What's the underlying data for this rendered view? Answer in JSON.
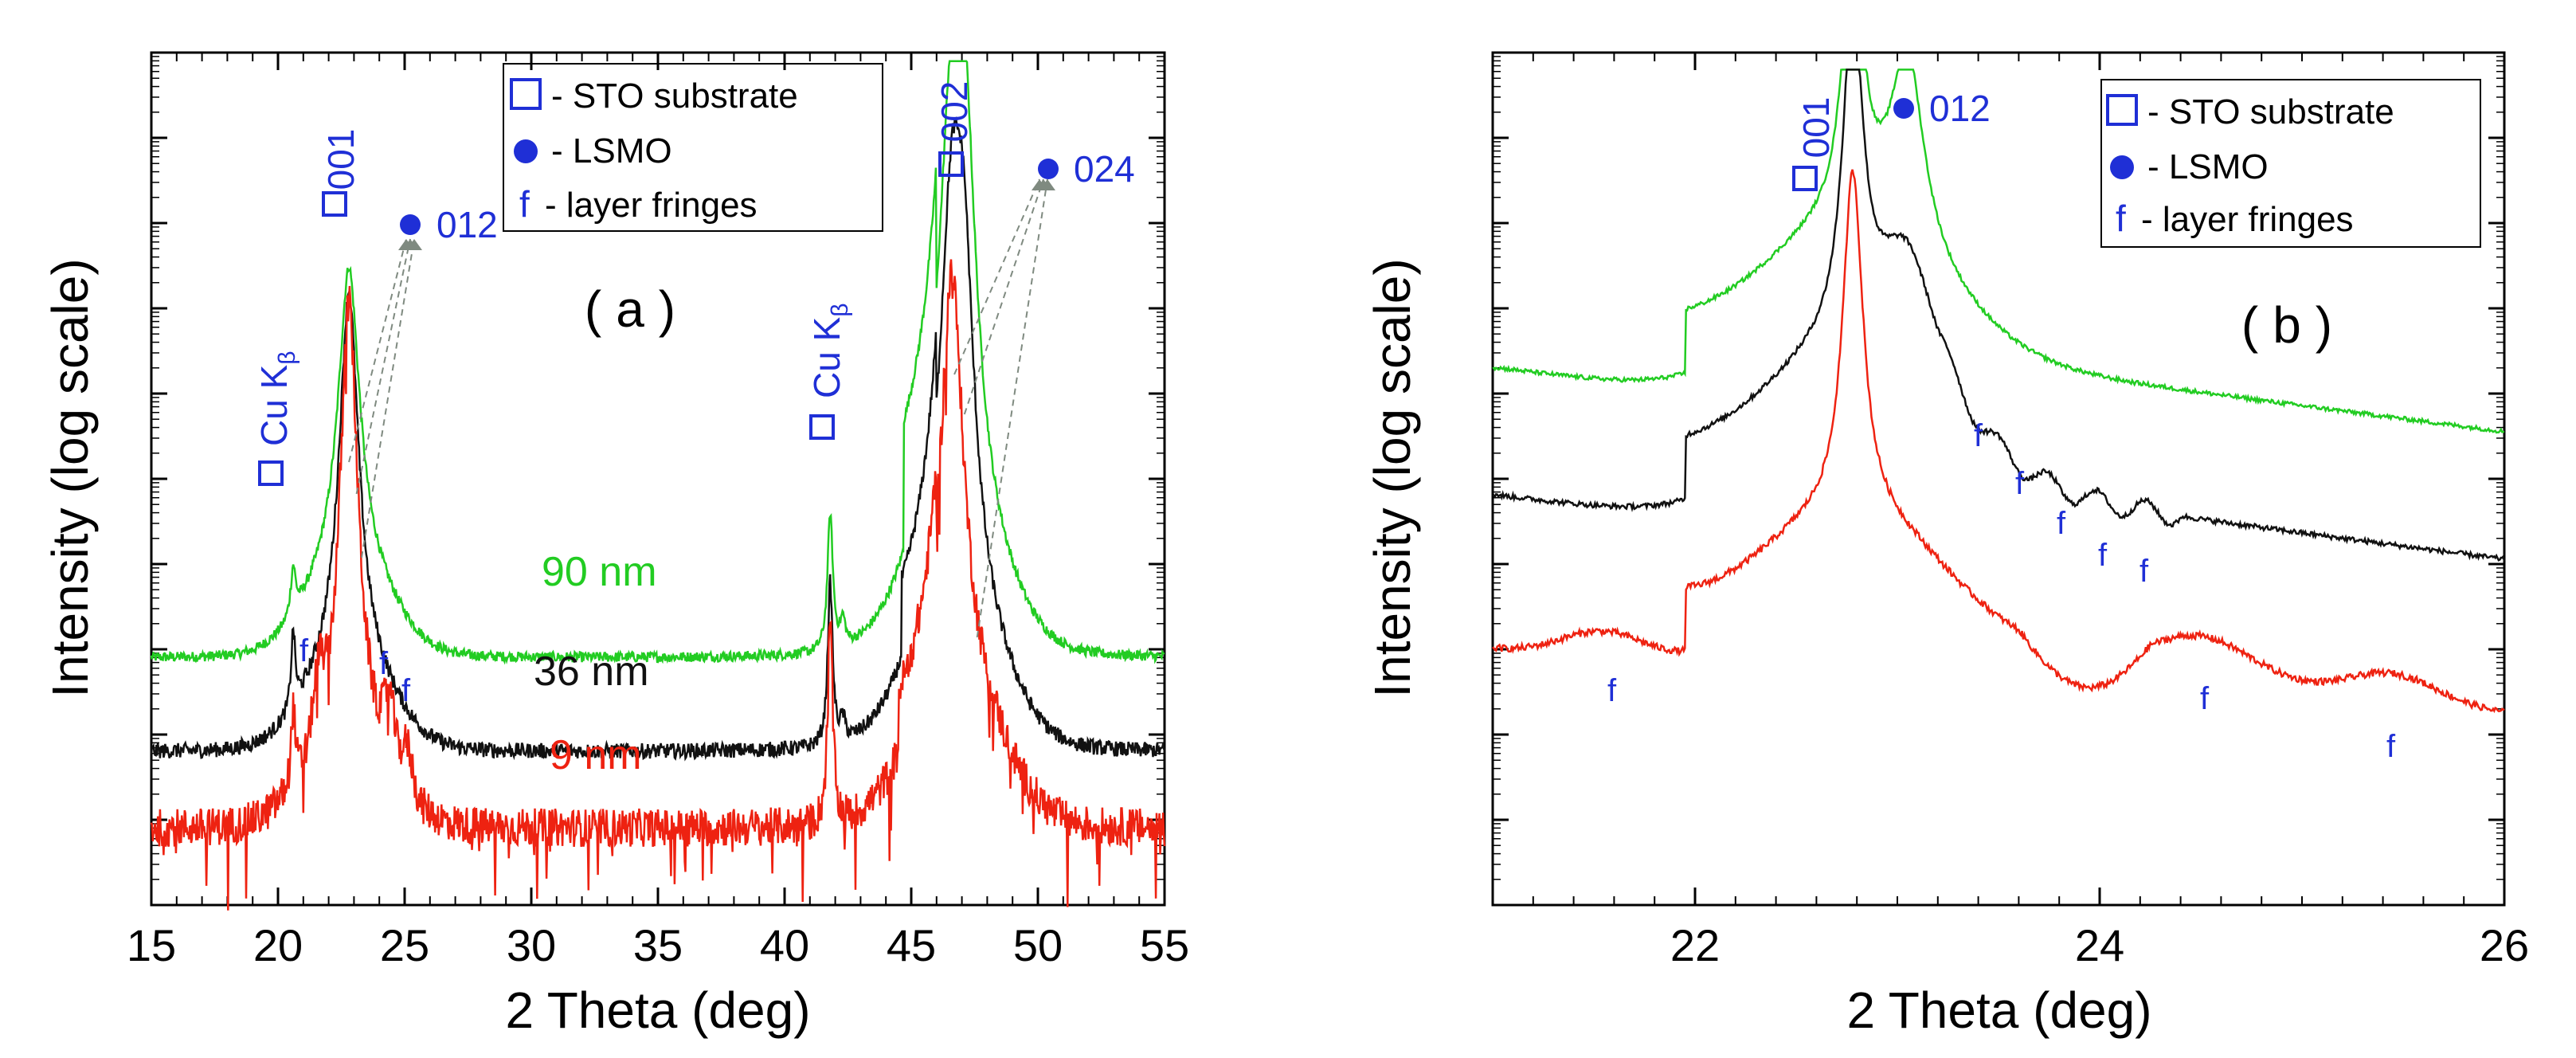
{
  "chart_data": [
    {
      "type": "line",
      "panel": "(a)",
      "xlabel": "2 Theta (deg)",
      "ylabel": "Intensity (log scale)",
      "xlim": [
        15,
        55
      ],
      "xticks": [
        15,
        20,
        25,
        30,
        35,
        40,
        45,
        50,
        55
      ],
      "ylim": [
        0,
        10
      ],
      "yscale": "log (relative)",
      "legend": {
        "position": "top-right",
        "entries": [
          {
            "symbol": "open-square",
            "text": "- STO substrate"
          },
          {
            "symbol": "filled-circle",
            "text": "- LSMO"
          },
          {
            "symbol": "f",
            "text": "layer fringes"
          }
        ]
      },
      "series": [
        {
          "name": "90 nm",
          "label": "90 nm",
          "color": "#22cc22",
          "offset": 2.9,
          "peaks": [
            [
              20.6,
              0.55,
              0.12
            ],
            [
              22.8,
              3.5,
              0.55
            ],
            [
              41.8,
              1.6,
              0.13
            ],
            [
              42.3,
              0.3,
              0.12
            ],
            [
              46.6,
              4.5,
              0.75
            ],
            [
              47.15,
              3.0,
              0.55
            ]
          ],
          "fringes": []
        },
        {
          "name": "36 nm",
          "label": "36 nm",
          "color": "#111111",
          "offset": 1.8,
          "peaks": [
            [
              20.6,
              0.9,
              0.1
            ],
            [
              22.8,
              4.3,
              0.5
            ],
            [
              41.8,
              1.9,
              0.12
            ],
            [
              42.3,
              0.25,
              0.12
            ],
            [
              46.6,
              4.5,
              0.7
            ],
            [
              47.1,
              2.5,
              0.5
            ]
          ],
          "fringes": []
        },
        {
          "name": "9 nm",
          "label": "9 nm",
          "color": "#ee2211",
          "offset": 0.9,
          "peaks": [
            [
              20.6,
              0.9,
              0.1
            ],
            [
              22.8,
              5.1,
              0.45
            ],
            [
              41.8,
              2.4,
              0.12
            ],
            [
              46.6,
              5.0,
              0.6
            ]
          ],
          "fringes": [
            [
              21.6,
              0.7,
              0.3
            ],
            [
              24.4,
              0.7,
              0.3
            ],
            [
              25.1,
              0.5,
              0.3
            ]
          ]
        }
      ],
      "annotations": [
        {
          "kind": "substrate",
          "text": "001",
          "x": 22.5
        },
        {
          "kind": "lsmo",
          "text": "012",
          "x": 25.5
        },
        {
          "kind": "substrate",
          "text": "002",
          "x": 46.5
        },
        {
          "kind": "lsmo",
          "text": "024",
          "x": 50.8
        },
        {
          "kind": "kbeta",
          "text": "Cu K",
          "sub": "β",
          "x": 20.2
        },
        {
          "kind": "kbeta",
          "text": "Cu K",
          "sub": "β",
          "x": 41.6
        },
        {
          "kind": "fringe",
          "text": "f",
          "x": 21.6
        },
        {
          "kind": "fringe",
          "text": "f",
          "x": 24.4
        },
        {
          "kind": "fringe",
          "text": "f",
          "x": 25.1
        }
      ]
    },
    {
      "type": "line",
      "panel": "(b)",
      "xlabel": "2 Theta (deg)",
      "ylabel": "Intensity (log scale)",
      "xlim": [
        21,
        26
      ],
      "xticks": [
        22,
        24,
        26
      ],
      "ylim": [
        0,
        10
      ],
      "yscale": "log (relative)",
      "legend": {
        "position": "top-right",
        "entries": [
          {
            "symbol": "open-square",
            "text": "- STO substrate"
          },
          {
            "symbol": "filled-circle",
            "text": "- LSMO"
          },
          {
            "symbol": "f",
            "text": "layer fringes"
          }
        ]
      },
      "series": [
        {
          "name": "90 nm",
          "color": "#22cc22"
        },
        {
          "name": "36 nm",
          "color": "#111111"
        },
        {
          "name": "9 nm",
          "color": "#ee2211"
        }
      ],
      "annotations": [
        {
          "kind": "substrate",
          "text": "001",
          "x": 22.6
        },
        {
          "kind": "lsmo",
          "text": "012",
          "x": 23.1
        },
        {
          "kind": "fringe",
          "text": "f",
          "x": 21.6
        },
        {
          "kind": "fringe",
          "text": "f",
          "x": 23.4
        },
        {
          "kind": "fringe",
          "text": "f",
          "x": 23.6
        },
        {
          "kind": "fringe",
          "text": "f",
          "x": 23.85
        },
        {
          "kind": "fringe",
          "text": "f",
          "x": 24.05
        },
        {
          "kind": "fringe",
          "text": "f",
          "x": 24.25
        },
        {
          "kind": "fringe",
          "text": "f",
          "x": 24.5
        },
        {
          "kind": "fringe",
          "text": "f",
          "x": 25.45
        }
      ]
    }
  ]
}
